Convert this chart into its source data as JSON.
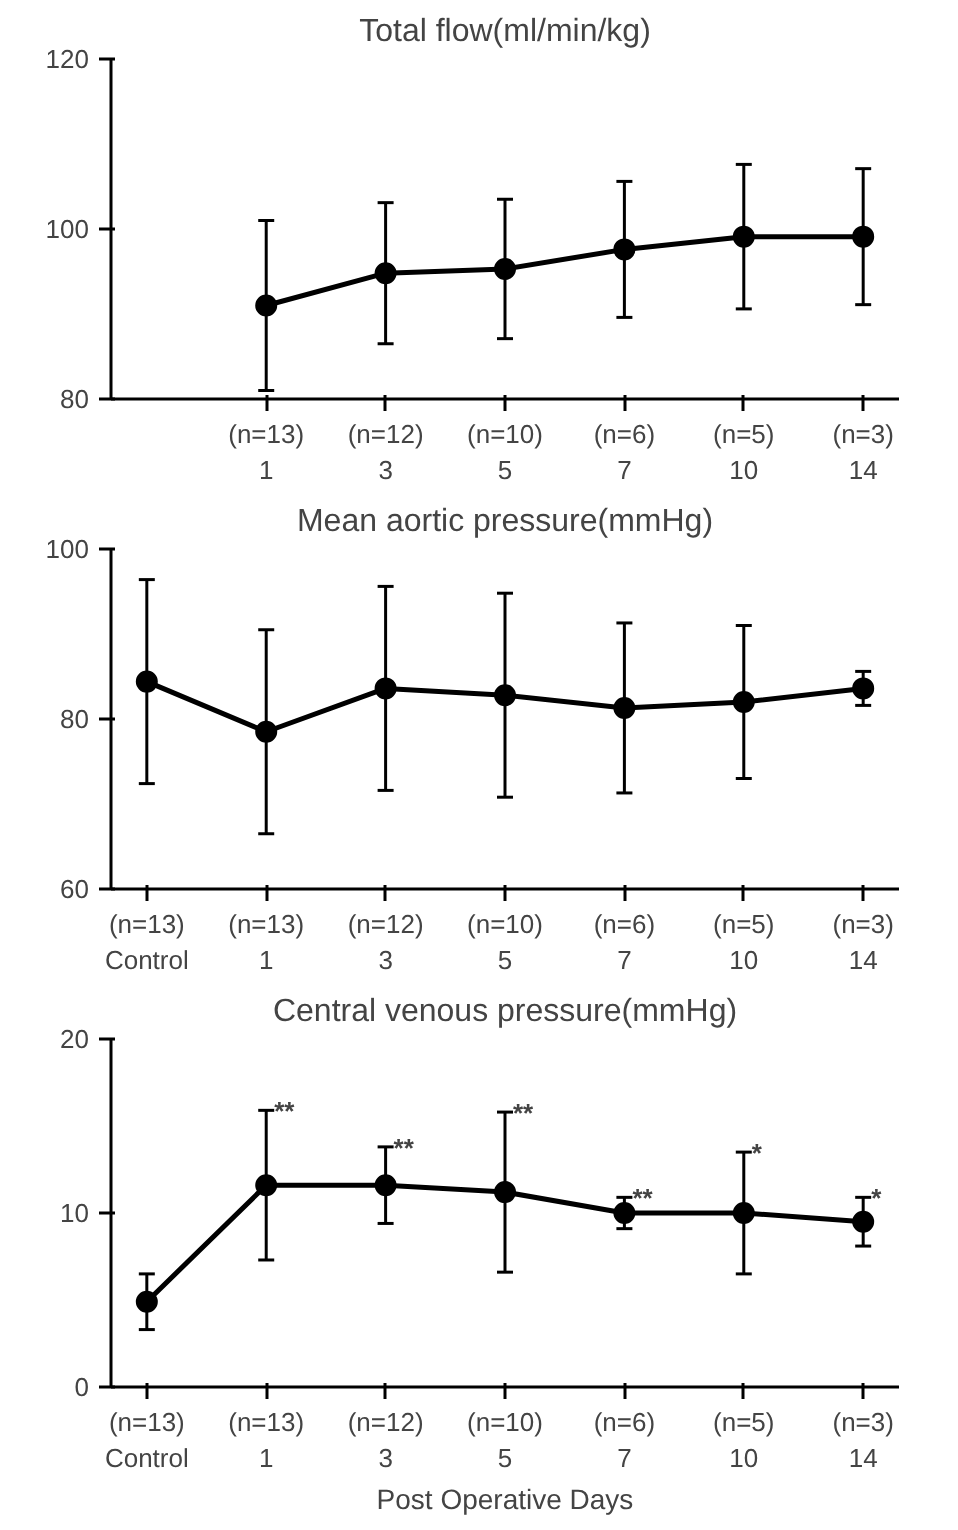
{
  "chart_data": [
    {
      "type": "line",
      "title": "Total flow(ml/min/kg)",
      "categories": [
        "1",
        "3",
        "5",
        "7",
        "10",
        "14"
      ],
      "values": [
        91,
        94.8,
        95.3,
        97.6,
        99.1,
        99.1
      ],
      "errors": [
        10,
        8.3,
        8.2,
        8,
        8.5,
        8
      ],
      "color": "#000000",
      "marker": "circle",
      "ylim": [
        80,
        120
      ],
      "yticks": [
        80,
        100,
        120
      ],
      "grid": false,
      "annotations": [
        "(n=13)",
        "(n=12)",
        "(n=10)",
        "(n=6)",
        "(n=5)",
        "(n=3)"
      ]
    },
    {
      "type": "line",
      "title": "Mean aortic pressure(mmHg)",
      "categories": [
        "Control",
        "1",
        "3",
        "5",
        "7",
        "10",
        "14"
      ],
      "values": [
        84.4,
        78.5,
        83.6,
        82.8,
        81.3,
        82,
        83.6
      ],
      "errors": [
        12,
        12,
        12,
        12,
        10,
        9,
        2
      ],
      "color": "#000000",
      "marker": "circle",
      "ylim": [
        60,
        100
      ],
      "yticks": [
        60,
        80,
        100
      ],
      "grid": false,
      "annotations": [
        "(n=13)",
        "(n=13)",
        "(n=12)",
        "(n=10)",
        "(n=6)",
        "(n=5)",
        "(n=3)"
      ]
    },
    {
      "type": "line",
      "title": "Central venous pressure(mmHg)",
      "xlabel": "Post Operative Days",
      "categories": [
        "Control",
        "1",
        "3",
        "5",
        "7",
        "10",
        "14"
      ],
      "values": [
        4.9,
        11.6,
        11.6,
        11.2,
        10,
        10,
        9.5
      ],
      "errors": [
        1.6,
        4.3,
        2.2,
        4.6,
        0.9,
        3.5,
        1.4
      ],
      "color": "#000000",
      "marker": "circle",
      "ylim": [
        0,
        20
      ],
      "yticks": [
        0,
        10,
        20
      ],
      "grid": false,
      "annotations": [
        "(n=13)",
        "(n=13)",
        "(n=12)",
        "(n=10)",
        "(n=6)",
        "(n=5)",
        "(n=3)",
        {
          "text": "**",
          "x": "1",
          "y": 15.9
        },
        {
          "text": "**",
          "x": "3",
          "y": 13.8
        },
        {
          "text": "**",
          "x": "5",
          "y": 15.8
        },
        {
          "text": "**",
          "x": "7",
          "y": 10.9
        },
        {
          "text": "*",
          "x": "10",
          "y": 13.5
        },
        {
          "text": "*",
          "x": "14",
          "y": 10.9
        }
      ]
    }
  ]
}
